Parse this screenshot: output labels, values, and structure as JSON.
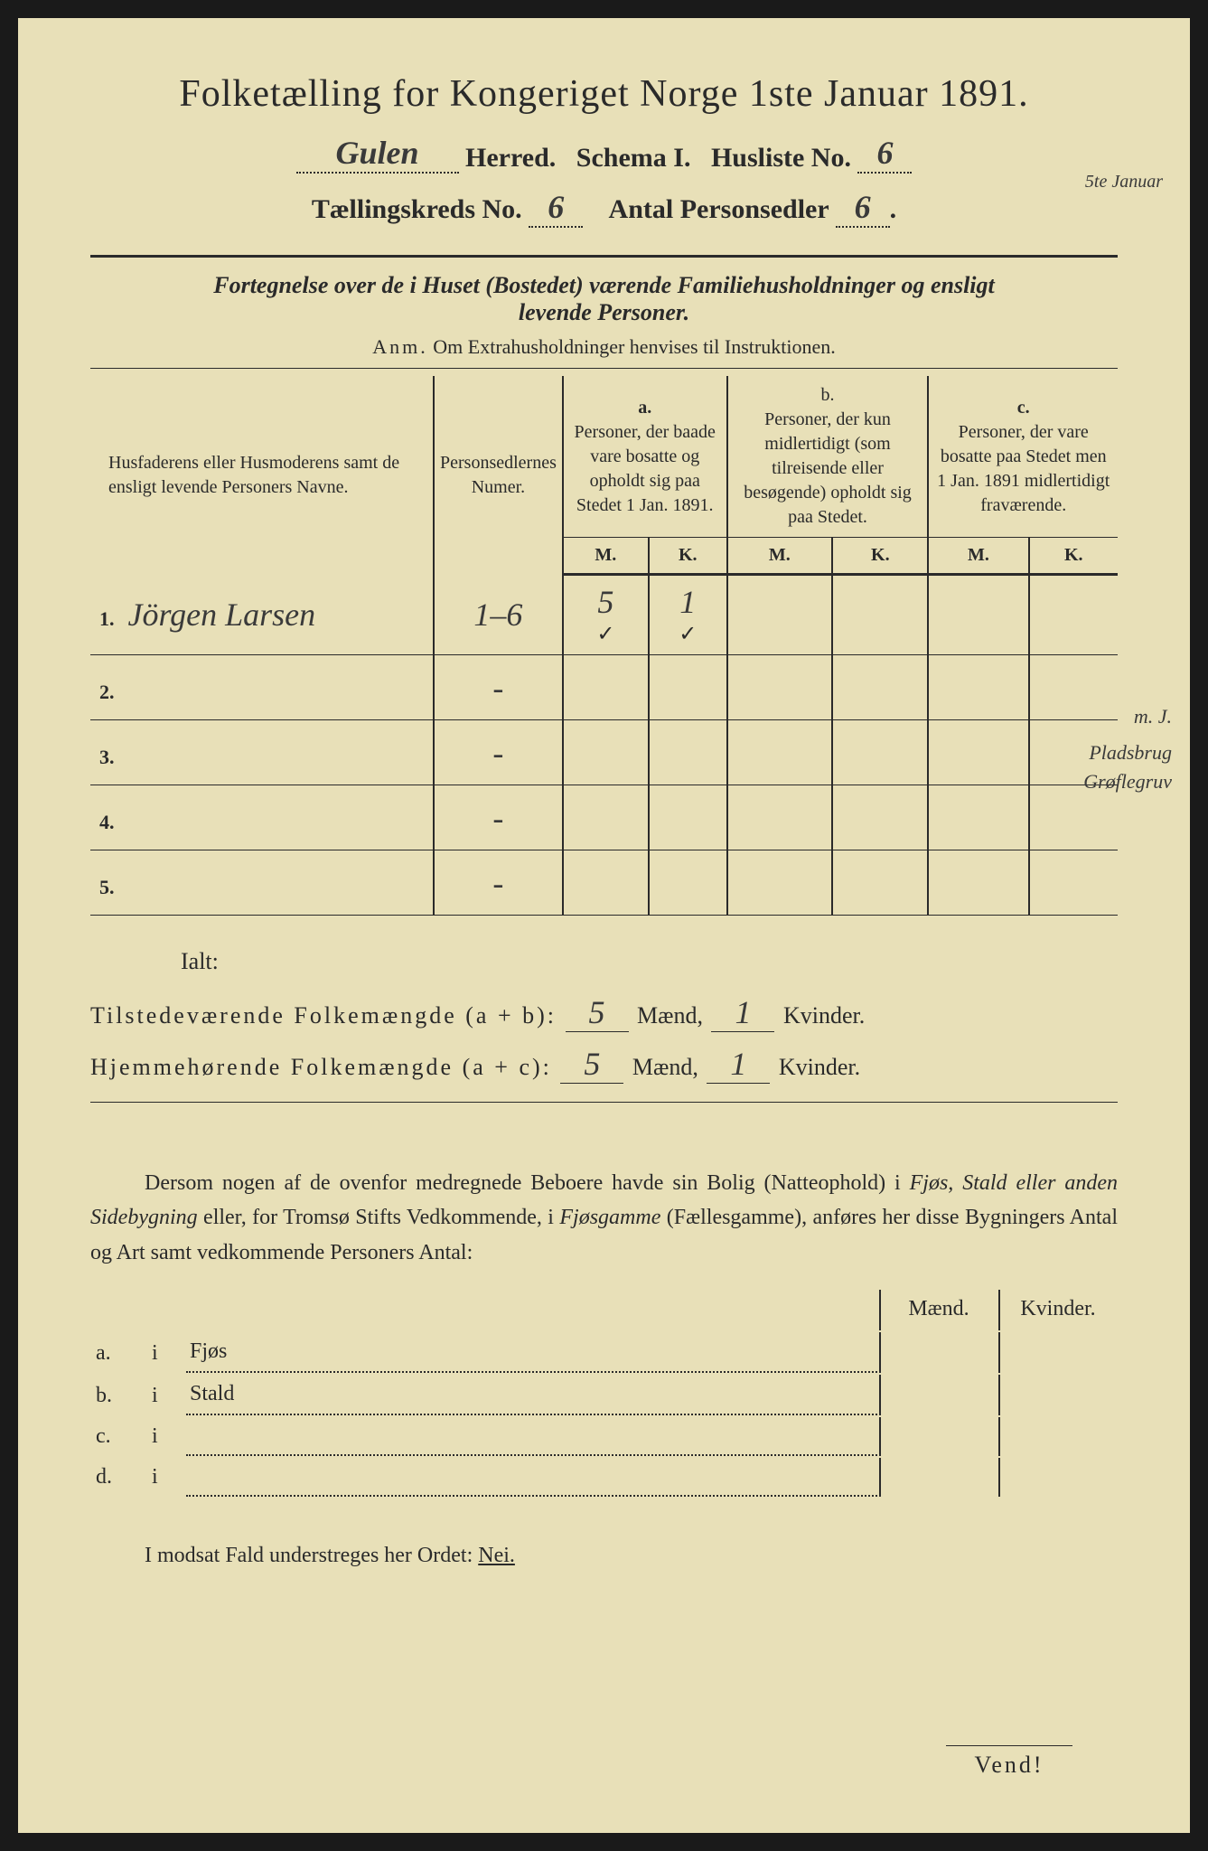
{
  "colors": {
    "paper": "#e8e0b8",
    "ink": "#2a2a2a",
    "frame": "#1a1a1a"
  },
  "header": {
    "title": "Folketælling for Kongeriget Norge 1ste Januar 1891.",
    "herred_value": "Gulen",
    "herred_label": "Herred.",
    "schema_label": "Schema I.",
    "husliste_label": "Husliste No.",
    "husliste_value": "6",
    "margin_date": "5te Januar",
    "kreds_label": "Tællingskreds No.",
    "kreds_value": "6",
    "personsedler_label": "Antal Personsedler",
    "personsedler_value": "6"
  },
  "subtitle": {
    "line1a": "Fortegnelse over de i Huset (Bostedet) værende Familiehusholdninger og ensligt",
    "line1b": "levende Personer.",
    "note_prefix": "Anm.",
    "note_rest": "Om Extrahusholdninger henvises til Instruktionen."
  },
  "table": {
    "col1": "Husfaderens eller Husmoderens samt de ensligt levende Personers Navne.",
    "col2": "Personsedlernes Numer.",
    "col_a_letter": "a.",
    "col_a": "Personer, der baade vare bosatte og opholdt sig paa Stedet 1 Jan. 1891.",
    "col_b_letter": "b.",
    "col_b": "Personer, der kun midlertidigt (som tilreisende eller besøgende) opholdt sig paa Stedet.",
    "col_c_letter": "c.",
    "col_c": "Personer, der vare bosatte paa Stedet men 1 Jan. 1891 midlertidigt fraværende.",
    "M": "M.",
    "K": "K.",
    "side_note_top": "m. J.",
    "side_note_1": "Pladsbrug",
    "side_note_2": "Grøflegruv",
    "rows": [
      {
        "n": "1.",
        "name": "Jörgen Larsen",
        "num": "1–6",
        "aM": "5",
        "aK": "1",
        "bM": "",
        "bK": "",
        "cM": "",
        "cK": "",
        "check_aM": "✓",
        "check_aK": "✓"
      },
      {
        "n": "2.",
        "name": "",
        "num": "-",
        "aM": "",
        "aK": "",
        "bM": "",
        "bK": "",
        "cM": "",
        "cK": ""
      },
      {
        "n": "3.",
        "name": "",
        "num": "-",
        "aM": "",
        "aK": "",
        "bM": "",
        "bK": "",
        "cM": "",
        "cK": ""
      },
      {
        "n": "4.",
        "name": "",
        "num": "-",
        "aM": "",
        "aK": "",
        "bM": "",
        "bK": "",
        "cM": "",
        "cK": ""
      },
      {
        "n": "5.",
        "name": "",
        "num": "-",
        "aM": "",
        "aK": "",
        "bM": "",
        "bK": "",
        "cM": "",
        "cK": ""
      }
    ]
  },
  "totals": {
    "ialt": "Ialt:",
    "line1_label": "Tilstedeværende Folkemængde (a + b):",
    "line2_label": "Hjemmehørende Folkemængde (a + c):",
    "maend": "Mænd,",
    "kvinder": "Kvinder.",
    "t_m": "5",
    "t_k": "1",
    "h_m": "5",
    "h_k": "1"
  },
  "paragraph": {
    "text1": "Dersom nogen af de ovenfor medregnede Beboere havde sin Bolig (Natteophold) i ",
    "em1": "Fjøs, Stald eller anden Sidebygning",
    "text2": " eller, for Tromsø Stifts Vedkommende, i ",
    "em2": "Fjøsgamme",
    "text3": " (Fællesgamme), anføres her disse Bygningers Antal og Art samt vedkommende Personers Antal:"
  },
  "buildings": {
    "maend": "Mænd.",
    "kvinder": "Kvinder.",
    "rows": [
      {
        "letter": "a.",
        "i": "i",
        "label": "Fjøs"
      },
      {
        "letter": "b.",
        "i": "i",
        "label": "Stald"
      },
      {
        "letter": "c.",
        "i": "i",
        "label": ""
      },
      {
        "letter": "d.",
        "i": "i",
        "label": ""
      }
    ]
  },
  "modsat": {
    "text": "I modsat Fald understreges her Ordet: ",
    "nei": "Nei."
  },
  "vend": "Vend!"
}
